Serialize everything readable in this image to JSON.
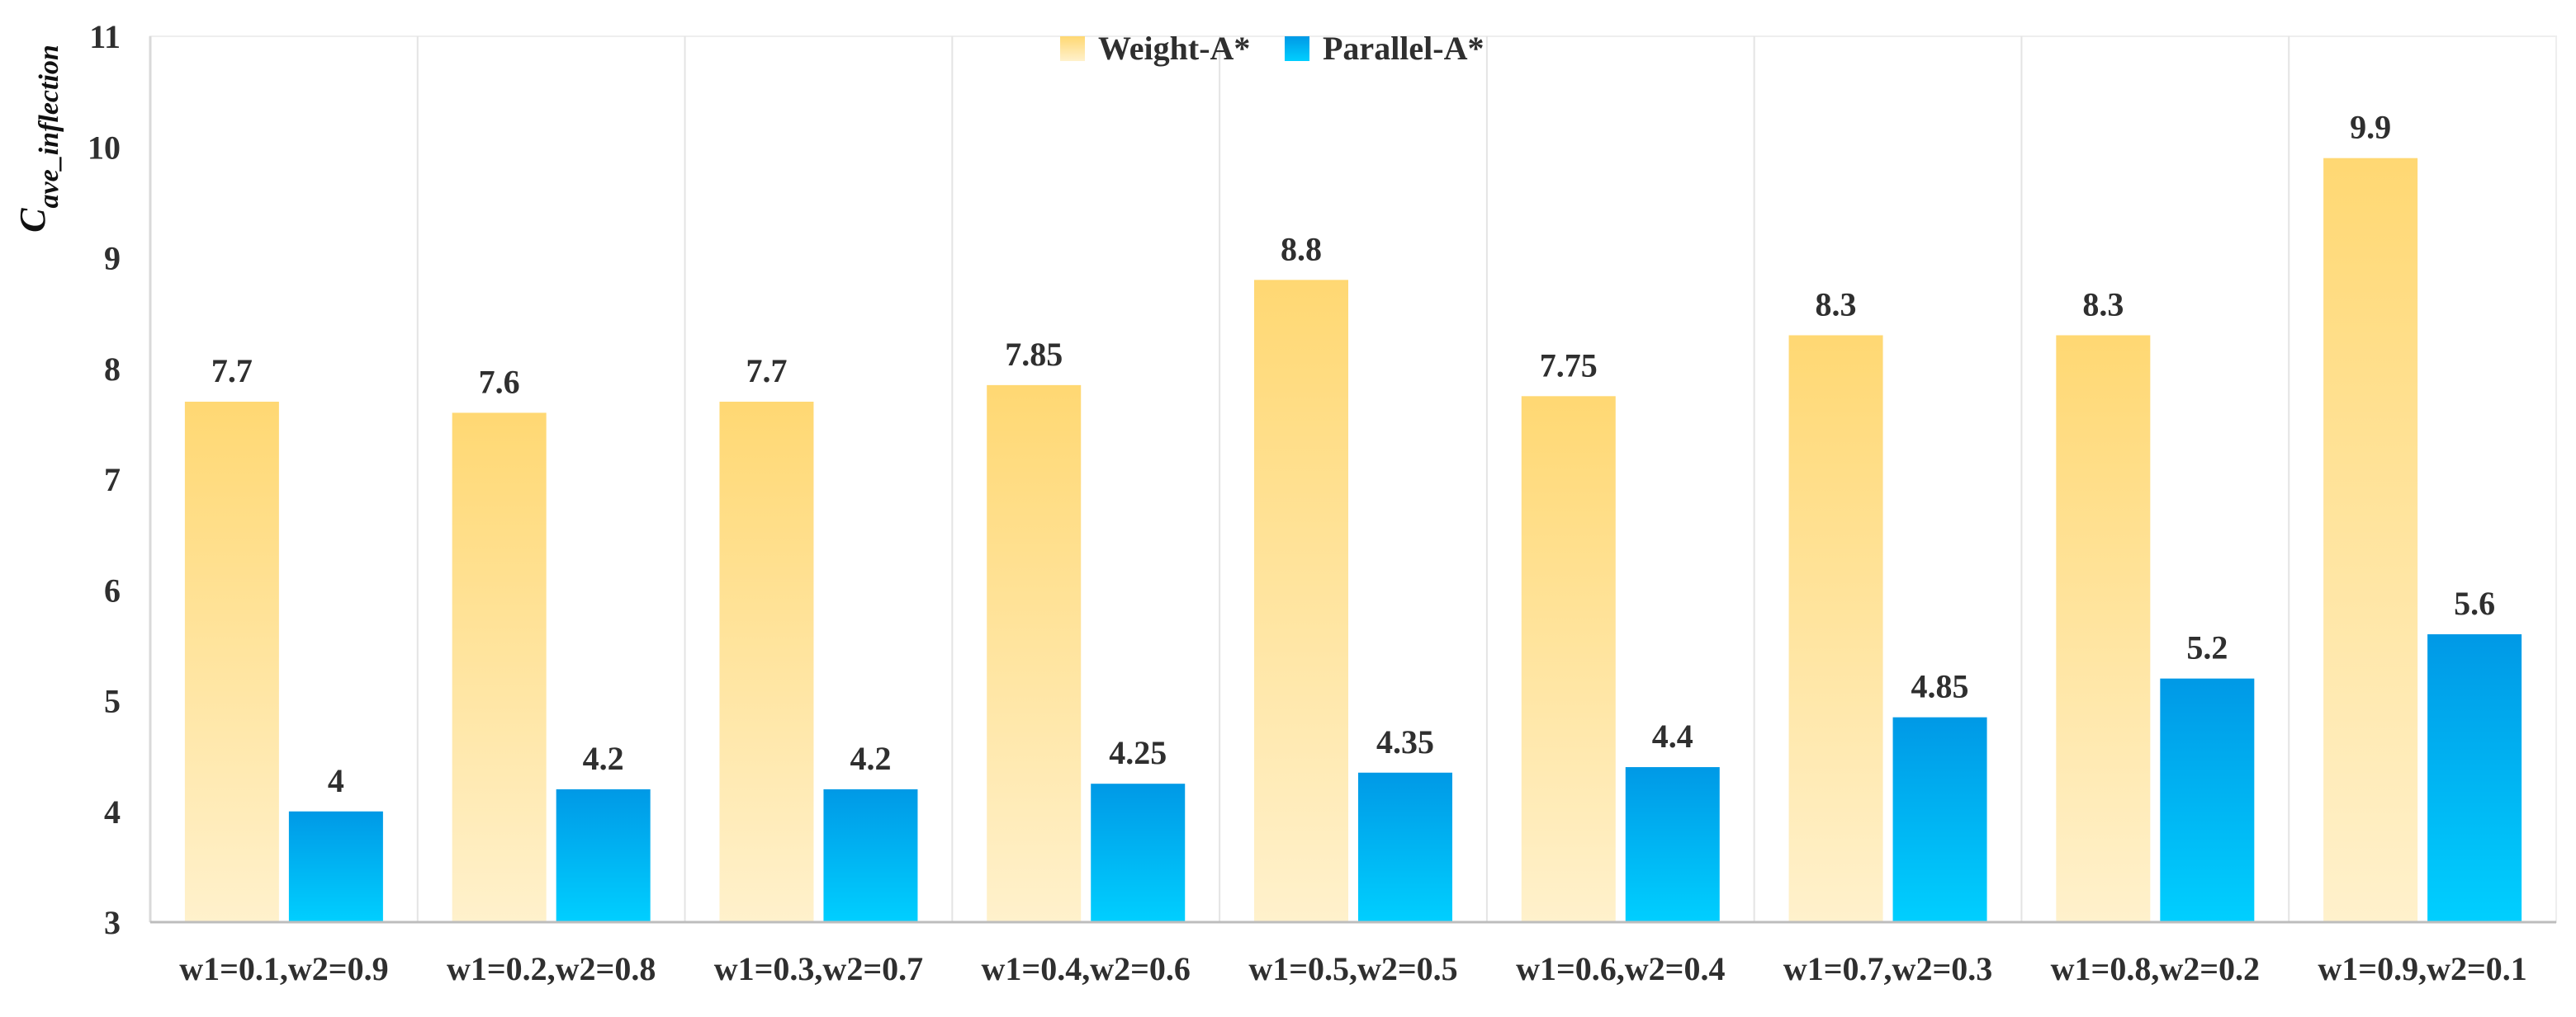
{
  "chart_data": {
    "type": "bar",
    "title": "",
    "xlabel": "",
    "ylabel": "C",
    "ylabel_subscript": "ave_inflection",
    "ylim": [
      3,
      11
    ],
    "yticks": [
      3,
      4,
      5,
      6,
      7,
      8,
      9,
      10,
      11
    ],
    "categories": [
      "w1=0.1,w2=0.9",
      "w1=0.2,w2=0.8",
      "w1=0.3,w2=0.7",
      "w1=0.4,w2=0.6",
      "w1=0.5,w2=0.5",
      "w1=0.6,w2=0.4",
      "w1=0.7,w2=0.3",
      "w1=0.8,w2=0.2",
      "w1=0.9,w2=0.1"
    ],
    "series": [
      {
        "name": "Weight-A*",
        "values": [
          7.7,
          7.6,
          7.7,
          7.85,
          8.8,
          7.75,
          8.3,
          8.3,
          9.9
        ],
        "labels": [
          "7.7",
          "7.6",
          "7.7",
          "7.85",
          "8.8",
          "7.75",
          "8.3",
          "8.3",
          "9.9"
        ],
        "color": "#FFD873"
      },
      {
        "name": "Parallel-A*",
        "values": [
          4,
          4.2,
          4.2,
          4.25,
          4.35,
          4.4,
          4.85,
          5.2,
          5.6
        ],
        "labels": [
          "4",
          "4.2",
          "4.2",
          "4.25",
          "4.35",
          "4.4",
          "4.85",
          "5.2",
          "5.6"
        ],
        "color": "#00A9EE"
      }
    ],
    "legend": "top-center",
    "grid": "vertical category separators"
  },
  "colors": {
    "weight_top": "#FFD873",
    "weight_bottom": "#FFF1CC",
    "parallel_top": "#0099E6",
    "parallel_bottom": "#00CFFF",
    "grid": "#E4E4E4",
    "text": "#2F2F2F"
  }
}
